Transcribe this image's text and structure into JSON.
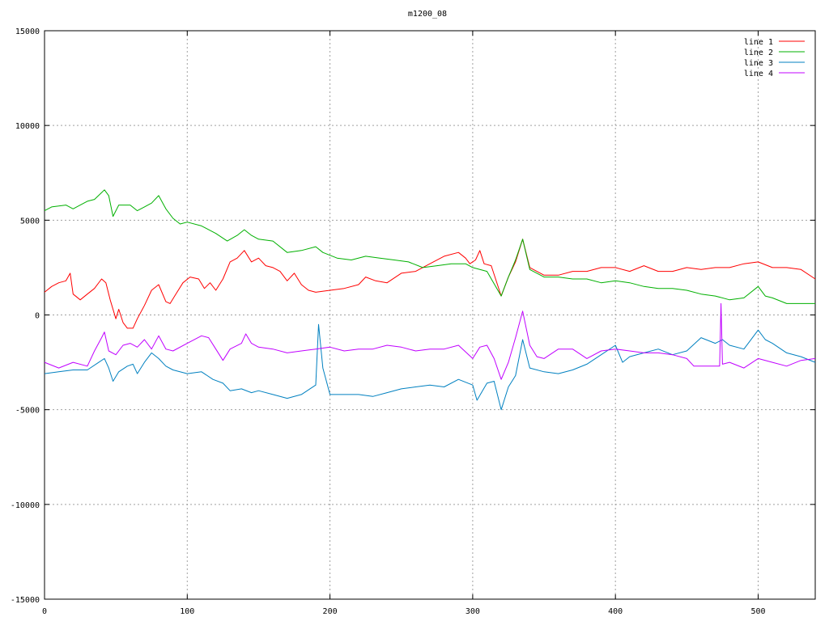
{
  "chart_data": {
    "type": "line",
    "title": "m1200_08",
    "xlabel": "",
    "ylabel": "",
    "xlim": [
      0,
      540
    ],
    "ylim": [
      -15000,
      15000
    ],
    "grid": true,
    "legend_position": "top-right",
    "x_ticks": [
      "0",
      "100",
      "200",
      "300",
      "400",
      "500"
    ],
    "y_ticks": [
      "-15000",
      "-10000",
      "-5000",
      "0",
      "5000",
      "10000",
      "15000"
    ],
    "series": [
      {
        "name": "line 1",
        "color": "#ff0000",
        "points": [
          [
            0,
            1200
          ],
          [
            5,
            1500
          ],
          [
            10,
            1700
          ],
          [
            15,
            1800
          ],
          [
            18,
            2200
          ],
          [
            20,
            1100
          ],
          [
            25,
            800
          ],
          [
            30,
            1100
          ],
          [
            35,
            1400
          ],
          [
            40,
            1900
          ],
          [
            43,
            1700
          ],
          [
            46,
            800
          ],
          [
            50,
            -200
          ],
          [
            52,
            300
          ],
          [
            55,
            -400
          ],
          [
            58,
            -700
          ],
          [
            62,
            -700
          ],
          [
            65,
            -200
          ],
          [
            70,
            500
          ],
          [
            75,
            1300
          ],
          [
            80,
            1600
          ],
          [
            85,
            700
          ],
          [
            88,
            600
          ],
          [
            92,
            1100
          ],
          [
            97,
            1700
          ],
          [
            102,
            2000
          ],
          [
            108,
            1900
          ],
          [
            112,
            1400
          ],
          [
            116,
            1700
          ],
          [
            120,
            1300
          ],
          [
            125,
            1900
          ],
          [
            130,
            2800
          ],
          [
            135,
            3000
          ],
          [
            140,
            3400
          ],
          [
            145,
            2800
          ],
          [
            150,
            3000
          ],
          [
            155,
            2600
          ],
          [
            160,
            2500
          ],
          [
            165,
            2300
          ],
          [
            170,
            1800
          ],
          [
            175,
            2200
          ],
          [
            180,
            1600
          ],
          [
            185,
            1300
          ],
          [
            190,
            1200
          ],
          [
            200,
            1300
          ],
          [
            210,
            1400
          ],
          [
            220,
            1600
          ],
          [
            225,
            2000
          ],
          [
            232,
            1800
          ],
          [
            240,
            1700
          ],
          [
            250,
            2200
          ],
          [
            260,
            2300
          ],
          [
            270,
            2700
          ],
          [
            280,
            3100
          ],
          [
            290,
            3300
          ],
          [
            295,
            3000
          ],
          [
            298,
            2700
          ],
          [
            302,
            2900
          ],
          [
            305,
            3400
          ],
          [
            308,
            2700
          ],
          [
            313,
            2600
          ],
          [
            320,
            1000
          ],
          [
            325,
            2000
          ],
          [
            330,
            2800
          ],
          [
            335,
            4000
          ],
          [
            340,
            2500
          ],
          [
            350,
            2100
          ],
          [
            360,
            2100
          ],
          [
            370,
            2300
          ],
          [
            380,
            2300
          ],
          [
            390,
            2500
          ],
          [
            400,
            2500
          ],
          [
            410,
            2300
          ],
          [
            420,
            2600
          ],
          [
            430,
            2300
          ],
          [
            440,
            2300
          ],
          [
            450,
            2500
          ],
          [
            460,
            2400
          ],
          [
            470,
            2500
          ],
          [
            480,
            2500
          ],
          [
            490,
            2700
          ],
          [
            500,
            2800
          ],
          [
            510,
            2500
          ],
          [
            520,
            2500
          ],
          [
            530,
            2400
          ],
          [
            540,
            1900
          ]
        ]
      },
      {
        "name": "line 2",
        "color": "#00b000",
        "points": [
          [
            0,
            5500
          ],
          [
            5,
            5700
          ],
          [
            15,
            5800
          ],
          [
            20,
            5600
          ],
          [
            25,
            5800
          ],
          [
            30,
            6000
          ],
          [
            35,
            6100
          ],
          [
            42,
            6600
          ],
          [
            45,
            6300
          ],
          [
            48,
            5200
          ],
          [
            52,
            5800
          ],
          [
            60,
            5800
          ],
          [
            65,
            5500
          ],
          [
            70,
            5700
          ],
          [
            75,
            5900
          ],
          [
            80,
            6300
          ],
          [
            85,
            5600
          ],
          [
            90,
            5100
          ],
          [
            95,
            4800
          ],
          [
            100,
            4900
          ],
          [
            110,
            4700
          ],
          [
            120,
            4300
          ],
          [
            128,
            3900
          ],
          [
            135,
            4200
          ],
          [
            140,
            4500
          ],
          [
            145,
            4200
          ],
          [
            150,
            4000
          ],
          [
            160,
            3900
          ],
          [
            170,
            3300
          ],
          [
            180,
            3400
          ],
          [
            190,
            3600
          ],
          [
            195,
            3300
          ],
          [
            205,
            3000
          ],
          [
            215,
            2900
          ],
          [
            225,
            3100
          ],
          [
            235,
            3000
          ],
          [
            245,
            2900
          ],
          [
            255,
            2800
          ],
          [
            265,
            2500
          ],
          [
            275,
            2600
          ],
          [
            285,
            2700
          ],
          [
            295,
            2700
          ],
          [
            300,
            2500
          ],
          [
            310,
            2300
          ],
          [
            320,
            1000
          ],
          [
            325,
            2000
          ],
          [
            330,
            2900
          ],
          [
            335,
            4000
          ],
          [
            340,
            2400
          ],
          [
            350,
            2000
          ],
          [
            360,
            2000
          ],
          [
            370,
            1900
          ],
          [
            380,
            1900
          ],
          [
            390,
            1700
          ],
          [
            400,
            1800
          ],
          [
            410,
            1700
          ],
          [
            420,
            1500
          ],
          [
            430,
            1400
          ],
          [
            440,
            1400
          ],
          [
            450,
            1300
          ],
          [
            460,
            1100
          ],
          [
            470,
            1000
          ],
          [
            480,
            800
          ],
          [
            490,
            900
          ],
          [
            500,
            1500
          ],
          [
            505,
            1000
          ],
          [
            510,
            900
          ],
          [
            520,
            600
          ],
          [
            530,
            600
          ],
          [
            540,
            600
          ]
        ]
      },
      {
        "name": "line 3",
        "color": "#0080c0",
        "points": [
          [
            0,
            -3100
          ],
          [
            10,
            -3000
          ],
          [
            20,
            -2900
          ],
          [
            30,
            -2900
          ],
          [
            38,
            -2500
          ],
          [
            42,
            -2300
          ],
          [
            45,
            -2800
          ],
          [
            48,
            -3500
          ],
          [
            52,
            -3000
          ],
          [
            58,
            -2700
          ],
          [
            62,
            -2600
          ],
          [
            65,
            -3100
          ],
          [
            70,
            -2500
          ],
          [
            75,
            -2000
          ],
          [
            80,
            -2300
          ],
          [
            85,
            -2700
          ],
          [
            90,
            -2900
          ],
          [
            100,
            -3100
          ],
          [
            110,
            -3000
          ],
          [
            118,
            -3400
          ],
          [
            125,
            -3600
          ],
          [
            130,
            -4000
          ],
          [
            138,
            -3900
          ],
          [
            145,
            -4100
          ],
          [
            150,
            -4000
          ],
          [
            160,
            -4200
          ],
          [
            170,
            -4400
          ],
          [
            180,
            -4200
          ],
          [
            190,
            -3700
          ],
          [
            192,
            -500
          ],
          [
            195,
            -2800
          ],
          [
            200,
            -4200
          ],
          [
            210,
            -4200
          ],
          [
            220,
            -4200
          ],
          [
            230,
            -4300
          ],
          [
            240,
            -4100
          ],
          [
            250,
            -3900
          ],
          [
            260,
            -3800
          ],
          [
            270,
            -3700
          ],
          [
            280,
            -3800
          ],
          [
            290,
            -3400
          ],
          [
            300,
            -3700
          ],
          [
            303,
            -4500
          ],
          [
            310,
            -3600
          ],
          [
            315,
            -3500
          ],
          [
            320,
            -5000
          ],
          [
            325,
            -3800
          ],
          [
            330,
            -3200
          ],
          [
            335,
            -1300
          ],
          [
            340,
            -2800
          ],
          [
            350,
            -3000
          ],
          [
            360,
            -3100
          ],
          [
            370,
            -2900
          ],
          [
            380,
            -2600
          ],
          [
            390,
            -2100
          ],
          [
            400,
            -1600
          ],
          [
            405,
            -2500
          ],
          [
            410,
            -2200
          ],
          [
            420,
            -2000
          ],
          [
            430,
            -1800
          ],
          [
            440,
            -2100
          ],
          [
            450,
            -1900
          ],
          [
            460,
            -1200
          ],
          [
            470,
            -1500
          ],
          [
            475,
            -1300
          ],
          [
            480,
            -1600
          ],
          [
            490,
            -1800
          ],
          [
            500,
            -800
          ],
          [
            505,
            -1300
          ],
          [
            510,
            -1500
          ],
          [
            520,
            -2000
          ],
          [
            530,
            -2200
          ],
          [
            540,
            -2500
          ]
        ]
      },
      {
        "name": "line 4",
        "color": "#c000ff",
        "points": [
          [
            0,
            -2500
          ],
          [
            10,
            -2800
          ],
          [
            20,
            -2500
          ],
          [
            30,
            -2700
          ],
          [
            35,
            -1900
          ],
          [
            40,
            -1200
          ],
          [
            42,
            -900
          ],
          [
            45,
            -1900
          ],
          [
            50,
            -2100
          ],
          [
            55,
            -1600
          ],
          [
            60,
            -1500
          ],
          [
            65,
            -1700
          ],
          [
            70,
            -1300
          ],
          [
            75,
            -1800
          ],
          [
            80,
            -1100
          ],
          [
            85,
            -1800
          ],
          [
            90,
            -1900
          ],
          [
            100,
            -1500
          ],
          [
            110,
            -1100
          ],
          [
            115,
            -1200
          ],
          [
            120,
            -1800
          ],
          [
            125,
            -2400
          ],
          [
            130,
            -1800
          ],
          [
            138,
            -1500
          ],
          [
            141,
            -1000
          ],
          [
            145,
            -1500
          ],
          [
            150,
            -1700
          ],
          [
            160,
            -1800
          ],
          [
            170,
            -2000
          ],
          [
            180,
            -1900
          ],
          [
            190,
            -1800
          ],
          [
            200,
            -1700
          ],
          [
            210,
            -1900
          ],
          [
            220,
            -1800
          ],
          [
            230,
            -1800
          ],
          [
            240,
            -1600
          ],
          [
            250,
            -1700
          ],
          [
            260,
            -1900
          ],
          [
            270,
            -1800
          ],
          [
            280,
            -1800
          ],
          [
            290,
            -1600
          ],
          [
            300,
            -2300
          ],
          [
            305,
            -1700
          ],
          [
            310,
            -1600
          ],
          [
            315,
            -2300
          ],
          [
            320,
            -3400
          ],
          [
            325,
            -2500
          ],
          [
            330,
            -1200
          ],
          [
            335,
            200
          ],
          [
            340,
            -1600
          ],
          [
            345,
            -2200
          ],
          [
            350,
            -2300
          ],
          [
            360,
            -1800
          ],
          [
            370,
            -1800
          ],
          [
            380,
            -2300
          ],
          [
            390,
            -1900
          ],
          [
            400,
            -1800
          ],
          [
            410,
            -1900
          ],
          [
            420,
            -2000
          ],
          [
            430,
            -2000
          ],
          [
            440,
            -2100
          ],
          [
            450,
            -2300
          ],
          [
            455,
            -2700
          ],
          [
            460,
            -2700
          ],
          [
            465,
            -2700
          ],
          [
            470,
            -2700
          ],
          [
            473,
            -2700
          ],
          [
            474,
            600
          ],
          [
            475,
            -2600
          ],
          [
            480,
            -2500
          ],
          [
            490,
            -2800
          ],
          [
            500,
            -2300
          ],
          [
            510,
            -2500
          ],
          [
            520,
            -2700
          ],
          [
            530,
            -2400
          ],
          [
            540,
            -2300
          ]
        ]
      }
    ]
  }
}
